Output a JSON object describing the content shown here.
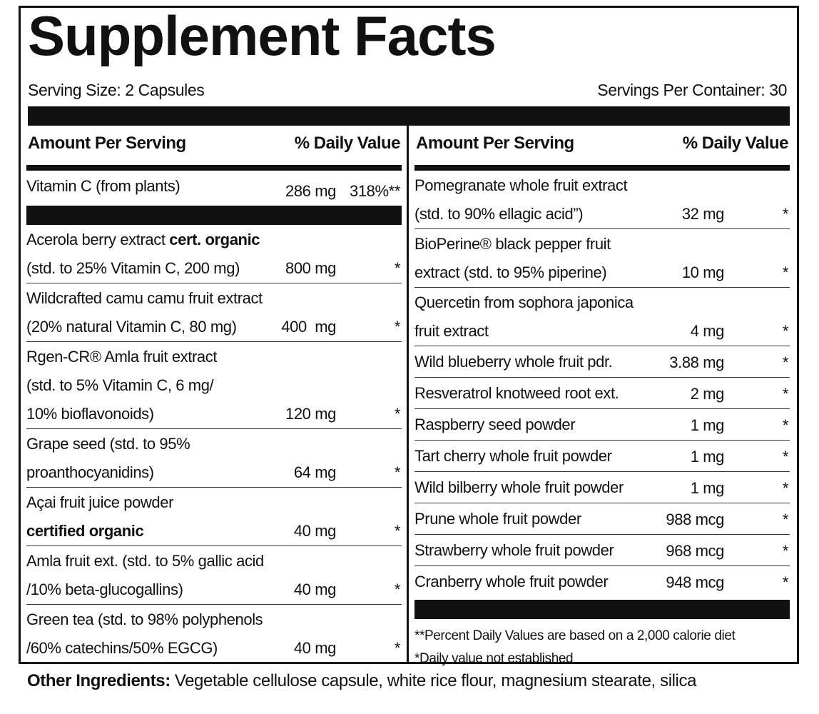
{
  "title": "Supplement Facts",
  "serving_size": "Serving Size: 2 Capsules",
  "servings_per_container": "Servings Per Container: 30",
  "left": {
    "header": {
      "amount": "Amount Per Serving",
      "dv": "% Daily Value"
    },
    "primary": [
      {
        "lines": [
          [
            "Vitamin C (from plants)"
          ]
        ],
        "amount": "286 mg",
        "dv": "318%**"
      }
    ],
    "rows": [
      {
        "lines": [
          [
            "Acerola berry extract",
            {
              "text": "cert. organic",
              "bold": true
            }
          ],
          [
            "(std. to 25% Vitamin C, 200 mg)"
          ]
        ],
        "amount": "800 mg",
        "dv": "*"
      },
      {
        "lines": [
          [
            "Wildcrafted camu camu fruit extract"
          ],
          [
            "(20% natural Vitamin C, 80 mg)"
          ]
        ],
        "amount": "400  mg",
        "dv": "*"
      },
      {
        "lines": [
          [
            "Rgen-CR® Amla fruit extract"
          ],
          [
            "(std. to 5% Vitamin C, 6 mg/"
          ],
          [
            "10% bioflavonoids)"
          ]
        ],
        "amount": "120 mg",
        "dv": "*"
      },
      {
        "lines": [
          [
            "Grape seed (std. to 95%"
          ],
          [
            "proanthocyanidins)"
          ]
        ],
        "amount": "64 mg",
        "dv": "*"
      },
      {
        "lines": [
          [
            "Açai fruit juice powder"
          ],
          [
            {
              "text": "certified organic",
              "bold": true
            }
          ]
        ],
        "amount": "40 mg",
        "dv": "*"
      },
      {
        "lines": [
          [
            "Amla fruit ext. (std. to 5% gallic acid"
          ],
          [
            "/10% beta-glucogallins)"
          ]
        ],
        "amount": "40 mg",
        "dv": "*"
      },
      {
        "lines": [
          [
            "Green tea (std. to 98% polyphenols"
          ],
          [
            "/60% catechins/50% EGCG)"
          ]
        ],
        "amount": "40 mg",
        "dv": "*"
      }
    ]
  },
  "right": {
    "header": {
      "amount": "Amount Per Serving",
      "dv": "% Daily Value"
    },
    "rows": [
      {
        "lines": [
          [
            "Pomegranate whole fruit extract"
          ],
          [
            "(std. to 90% ellagic acid”)"
          ]
        ],
        "amount": "32 mg",
        "dv": "*"
      },
      {
        "lines": [
          [
            "BioPerine® black pepper fruit"
          ],
          [
            "extract (std. to 95% piperine)"
          ]
        ],
        "amount": "10 mg",
        "dv": "*"
      },
      {
        "lines": [
          [
            "Quercetin from sophora japonica"
          ],
          [
            "fruit extract"
          ]
        ],
        "amount": "4 mg",
        "dv": "*"
      },
      {
        "lines": [
          [
            "Wild blueberry whole fruit pdr."
          ]
        ],
        "amount": "3.88 mg",
        "dv": "*"
      },
      {
        "lines": [
          [
            "Resveratrol knotweed root ext."
          ]
        ],
        "amount": "2 mg",
        "dv": "*"
      },
      {
        "lines": [
          [
            "Raspberry seed powder"
          ]
        ],
        "amount": "1 mg",
        "dv": "*"
      },
      {
        "lines": [
          [
            "Tart cherry whole fruit powder"
          ]
        ],
        "amount": "1 mg",
        "dv": "*"
      },
      {
        "lines": [
          [
            "Wild bilberry whole fruit powder"
          ]
        ],
        "amount": "1 mg",
        "dv": "*"
      },
      {
        "lines": [
          [
            "Prune whole fruit powder"
          ]
        ],
        "amount": "988 mcg",
        "dv": "*"
      },
      {
        "lines": [
          [
            "Strawberry whole fruit powder"
          ]
        ],
        "amount": "968 mcg",
        "dv": "*"
      },
      {
        "lines": [
          [
            "Cranberry whole fruit powder"
          ]
        ],
        "amount": "948 mcg",
        "dv": "*"
      }
    ],
    "footnotes": [
      "**Percent Daily Values are based on a 2,000 calorie diet",
      "*Daily value not established"
    ]
  },
  "other_ingredients": {
    "label": "Other Ingredients:",
    "text": "Vegetable cellulose capsule, white rice flour, magnesium stearate, silica"
  }
}
